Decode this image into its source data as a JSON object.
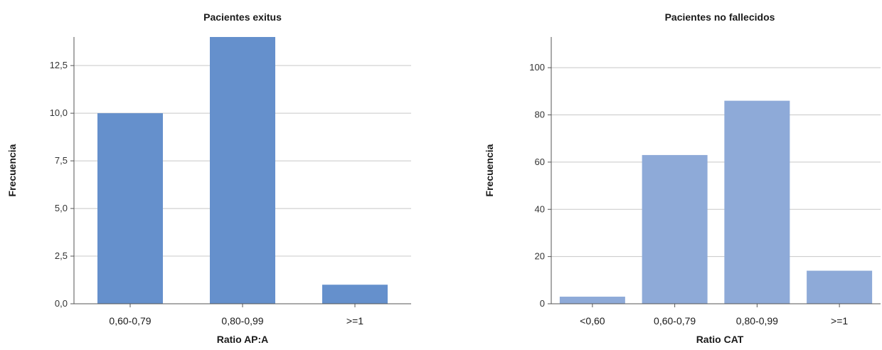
{
  "chart_data": [
    {
      "type": "bar",
      "title": "Pacientes exitus",
      "xlabel": "Ratio AP:A",
      "ylabel": "Frecuencia",
      "categories": [
        "0,60-0,79",
        "0,80-0,99",
        ">=1"
      ],
      "values": [
        10,
        14,
        1
      ],
      "ylim": [
        0,
        14
      ],
      "yticks": [
        0,
        2.5,
        5,
        7.5,
        10,
        12.5
      ],
      "ytick_labels": [
        "0,0",
        "2,5",
        "5,0",
        "7,5",
        "10,0",
        "12,5"
      ],
      "grid": true,
      "color": "#6590cc"
    },
    {
      "type": "bar",
      "title": "Pacientes no fallecidos",
      "xlabel": "Ratio CAT",
      "ylabel": "Frecuencia",
      "categories": [
        "<0,60",
        "0,60-0,79",
        "0,80-0,99",
        ">=1"
      ],
      "values": [
        3,
        63,
        86,
        14
      ],
      "ylim": [
        0,
        113
      ],
      "yticks": [
        0,
        20,
        40,
        60,
        80,
        100
      ],
      "ytick_labels": [
        "0",
        "20",
        "40",
        "60",
        "80",
        "100"
      ],
      "grid": true,
      "color": "#8eaad8"
    }
  ]
}
